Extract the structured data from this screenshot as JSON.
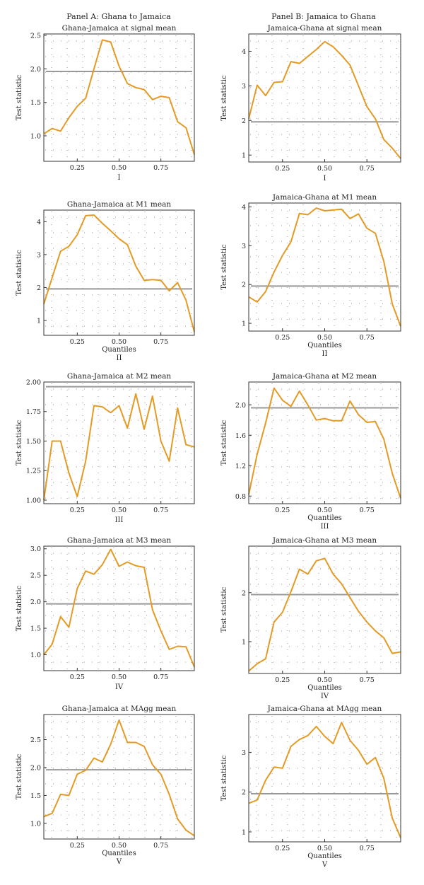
{
  "headings": {
    "left": "Panel A: Ghana to Jamaica",
    "right": "Panel B: Jamaica to Ghana"
  },
  "colors": {
    "line": "#E39B25",
    "critical": "#999999",
    "frame": "#333333",
    "grid_dots": "#9a9a9a"
  },
  "charts": [
    {
      "title": "Ghana-Jamaica at signal mean",
      "ylabel": "Test statistic",
      "xlabel": "",
      "roman": "I",
      "chart_data": {
        "type": "line",
        "xlim": [
          0.05,
          0.95
        ],
        "ylim": [
          0.62,
          2.52
        ],
        "yticks": [
          1.0,
          1.5,
          2.0,
          2.5
        ],
        "ytick_labels": [
          "1.0",
          "1.5",
          "2.0",
          "2.5"
        ],
        "xticks": [
          0.25,
          0.5,
          0.75
        ],
        "xtick_labels": [
          "0.25",
          "0.50",
          "0.75"
        ],
        "critical_value": 1.96,
        "x": [
          0.05,
          0.1,
          0.15,
          0.2,
          0.25,
          0.3,
          0.35,
          0.4,
          0.45,
          0.5,
          0.55,
          0.6,
          0.65,
          0.7,
          0.75,
          0.8,
          0.85,
          0.9,
          0.95
        ],
        "y": [
          1.03,
          1.11,
          1.07,
          1.27,
          1.44,
          1.56,
          2.0,
          2.43,
          2.4,
          2.04,
          1.78,
          1.72,
          1.69,
          1.54,
          1.59,
          1.57,
          1.21,
          1.12,
          0.72
        ]
      }
    },
    {
      "title": "Jamaica-Ghana at signal mean",
      "ylabel": "Test statistic",
      "xlabel": "",
      "roman": "I",
      "chart_data": {
        "type": "line",
        "xlim": [
          0.05,
          0.95
        ],
        "ylim": [
          0.8,
          4.5
        ],
        "yticks": [
          1,
          2,
          3,
          4
        ],
        "ytick_labels": [
          "1",
          "2",
          "3",
          "4"
        ],
        "xticks": [
          0.25,
          0.5,
          0.75
        ],
        "xtick_labels": [
          "0.25",
          "0.50",
          "0.75"
        ],
        "critical_value": 1.96,
        "x": [
          0.05,
          0.1,
          0.15,
          0.2,
          0.25,
          0.3,
          0.35,
          0.4,
          0.45,
          0.5,
          0.55,
          0.6,
          0.65,
          0.7,
          0.75,
          0.8,
          0.85,
          0.9,
          0.95
        ],
        "y": [
          2.05,
          3.02,
          2.72,
          3.1,
          3.12,
          3.7,
          3.65,
          3.85,
          4.05,
          4.28,
          4.13,
          3.88,
          3.6,
          3.0,
          2.4,
          2.05,
          1.45,
          1.2,
          0.9
        ]
      }
    },
    {
      "title": "Ghana-Jamaica at M1 mean",
      "ylabel": "Test statistic",
      "xlabel": "Quantiles",
      "roman": "II",
      "chart_data": {
        "type": "line",
        "xlim": [
          0.05,
          0.95
        ],
        "ylim": [
          0.55,
          4.35
        ],
        "yticks": [
          1,
          2,
          3,
          4
        ],
        "ytick_labels": [
          "1",
          "2",
          "3",
          "4"
        ],
        "xticks": [
          0.25,
          0.5,
          0.75
        ],
        "xtick_labels": [
          "0.25",
          "0.50",
          "0.75"
        ],
        "critical_value": 1.96,
        "x": [
          0.05,
          0.1,
          0.15,
          0.2,
          0.25,
          0.3,
          0.35,
          0.4,
          0.45,
          0.5,
          0.55,
          0.6,
          0.65,
          0.7,
          0.75,
          0.8,
          0.85,
          0.9,
          0.95
        ],
        "y": [
          1.5,
          2.3,
          3.1,
          3.25,
          3.6,
          4.18,
          4.2,
          3.95,
          3.72,
          3.48,
          3.3,
          2.65,
          2.22,
          2.24,
          2.22,
          1.9,
          2.15,
          1.62,
          0.65
        ]
      }
    },
    {
      "title": "Jamaica-Ghana at M1 mean",
      "ylabel": "Test statistic",
      "xlabel": "Quantiles",
      "roman": "II",
      "chart_data": {
        "type": "line",
        "xlim": [
          0.05,
          0.95
        ],
        "ylim": [
          0.8,
          4.1
        ],
        "yticks": [
          1,
          2,
          3,
          4
        ],
        "ytick_labels": [
          "1",
          "2",
          "3",
          "4"
        ],
        "xticks": [
          0.25,
          0.5,
          0.75
        ],
        "xtick_labels": [
          "0.25",
          "0.50",
          "0.75"
        ],
        "critical_value": 1.96,
        "x": [
          0.05,
          0.1,
          0.15,
          0.2,
          0.25,
          0.3,
          0.35,
          0.4,
          0.45,
          0.5,
          0.55,
          0.6,
          0.65,
          0.7,
          0.75,
          0.8,
          0.85,
          0.9,
          0.95
        ],
        "y": [
          1.68,
          1.55,
          1.82,
          2.32,
          2.75,
          3.1,
          3.83,
          3.8,
          3.97,
          3.9,
          3.92,
          3.94,
          3.7,
          3.82,
          3.45,
          3.32,
          2.6,
          1.5,
          0.92
        ]
      }
    },
    {
      "title": "Ghana-Jamaica at M2 mean",
      "ylabel": "Test statistic",
      "xlabel": "",
      "roman": "III",
      "chart_data": {
        "type": "line",
        "xlim": [
          0.05,
          0.95
        ],
        "ylim": [
          0.97,
          2.0
        ],
        "yticks": [
          1.0,
          1.25,
          1.5,
          1.75,
          2.0
        ],
        "ytick_labels": [
          "1.00",
          "1.25",
          "1.50",
          "1.75",
          "2.00"
        ],
        "xticks": [
          0.25,
          0.5,
          0.75
        ],
        "xtick_labels": [
          "0.25",
          "0.50",
          "0.75"
        ],
        "critical_value": 1.96,
        "x": [
          0.05,
          0.1,
          0.15,
          0.2,
          0.25,
          0.3,
          0.35,
          0.4,
          0.45,
          0.5,
          0.55,
          0.6,
          0.65,
          0.7,
          0.75,
          0.8,
          0.85,
          0.9,
          0.95
        ],
        "y": [
          1.0,
          1.5,
          1.5,
          1.23,
          1.03,
          1.33,
          1.8,
          1.79,
          1.74,
          1.8,
          1.61,
          1.9,
          1.6,
          1.88,
          1.5,
          1.33,
          1.78,
          1.47,
          1.45
        ]
      }
    },
    {
      "title": "Jamaica-Ghana at M2 mean",
      "ylabel": "Test statistic",
      "xlabel": "Quantiles",
      "roman": "III",
      "chart_data": {
        "type": "line",
        "xlim": [
          0.05,
          0.95
        ],
        "ylim": [
          0.7,
          2.3
        ],
        "yticks": [
          0.8,
          1.2,
          1.6,
          2.0
        ],
        "ytick_labels": [
          "0.8",
          "1.2",
          "1.6",
          "2.0"
        ],
        "xticks": [
          0.25,
          0.5,
          0.75
        ],
        "xtick_labels": [
          "0.25",
          "0.50",
          "0.75"
        ],
        "critical_value": 1.96,
        "x": [
          0.05,
          0.1,
          0.15,
          0.2,
          0.25,
          0.3,
          0.35,
          0.4,
          0.45,
          0.5,
          0.55,
          0.6,
          0.65,
          0.7,
          0.75,
          0.8,
          0.85,
          0.9,
          0.95
        ],
        "y": [
          0.82,
          1.35,
          1.76,
          2.22,
          2.06,
          1.98,
          2.18,
          2.0,
          1.8,
          1.82,
          1.79,
          1.79,
          2.05,
          1.87,
          1.77,
          1.78,
          1.55,
          1.1,
          0.77
        ]
      }
    },
    {
      "title": "Ghana-Jamaica at M3 mean",
      "ylabel": "Test statistic",
      "xlabel": "",
      "roman": "IV",
      "chart_data": {
        "type": "line",
        "xlim": [
          0.05,
          0.95
        ],
        "ylim": [
          0.7,
          3.05
        ],
        "yticks": [
          1.0,
          1.5,
          2.0,
          2.5,
          3.0
        ],
        "ytick_labels": [
          "1.0",
          "1.5",
          "2.0",
          "2.5",
          "3.0"
        ],
        "xticks": [
          0.25,
          0.5,
          0.75
        ],
        "xtick_labels": [
          "0.25",
          "0.50",
          "0.75"
        ],
        "critical_value": 1.96,
        "x": [
          0.05,
          0.1,
          0.15,
          0.2,
          0.25,
          0.3,
          0.35,
          0.4,
          0.45,
          0.5,
          0.55,
          0.6,
          0.65,
          0.7,
          0.75,
          0.8,
          0.85,
          0.9,
          0.95
        ],
        "y": [
          1.0,
          1.2,
          1.72,
          1.52,
          2.25,
          2.58,
          2.52,
          2.7,
          2.99,
          2.67,
          2.75,
          2.68,
          2.65,
          1.85,
          1.45,
          1.1,
          1.16,
          1.15,
          0.77
        ]
      }
    },
    {
      "title": "Jamaica-Ghana at M3 mean",
      "ylabel": "Test statistic",
      "xlabel": "Quantiles",
      "roman": "IV",
      "chart_data": {
        "type": "line",
        "xlim": [
          0.05,
          0.95
        ],
        "ylim": [
          0.35,
          2.95
        ],
        "yticks": [
          1,
          2
        ],
        "ytick_labels": [
          "1",
          "2"
        ],
        "xticks": [
          0.25,
          0.5,
          0.75
        ],
        "xtick_labels": [
          "0.25",
          "0.50",
          "0.75"
        ],
        "critical_value": 1.96,
        "x": [
          0.05,
          0.1,
          0.15,
          0.2,
          0.25,
          0.3,
          0.35,
          0.4,
          0.45,
          0.5,
          0.55,
          0.6,
          0.65,
          0.7,
          0.75,
          0.8,
          0.85,
          0.9,
          0.95
        ],
        "y": [
          0.4,
          0.55,
          0.65,
          1.4,
          1.6,
          2.02,
          2.48,
          2.38,
          2.65,
          2.7,
          2.38,
          2.18,
          1.9,
          1.62,
          1.4,
          1.22,
          1.08,
          0.76,
          0.79
        ]
      }
    },
    {
      "title": "Ghana-Jamaica at MAgg mean",
      "ylabel": "Test statistic",
      "xlabel": "Quantiles",
      "roman": "V",
      "chart_data": {
        "type": "line",
        "xlim": [
          0.05,
          0.95
        ],
        "ylim": [
          0.72,
          2.95
        ],
        "yticks": [
          1.0,
          1.5,
          2.0,
          2.5
        ],
        "ytick_labels": [
          "1.0",
          "1.5",
          "2.0",
          "2.5"
        ],
        "xticks": [
          0.25,
          0.5,
          0.75
        ],
        "xtick_labels": [
          "0.25",
          "0.50",
          "0.75"
        ],
        "critical_value": 1.96,
        "x": [
          0.05,
          0.1,
          0.15,
          0.2,
          0.25,
          0.3,
          0.35,
          0.4,
          0.45,
          0.5,
          0.55,
          0.6,
          0.65,
          0.7,
          0.75,
          0.8,
          0.85,
          0.9,
          0.95
        ],
        "y": [
          1.12,
          1.18,
          1.52,
          1.5,
          1.88,
          1.95,
          2.17,
          2.1,
          2.42,
          2.85,
          2.45,
          2.45,
          2.38,
          2.05,
          1.88,
          1.52,
          1.08,
          0.88,
          0.78
        ]
      }
    },
    {
      "title": "Jamaica-Ghana at MAgg mean",
      "ylabel": "Test statistic",
      "xlabel": "Quantiles",
      "roman": "V",
      "chart_data": {
        "type": "line",
        "xlim": [
          0.05,
          0.95
        ],
        "ylim": [
          0.75,
          3.95
        ],
        "yticks": [
          1,
          2,
          3
        ],
        "ytick_labels": [
          "1",
          "2",
          "3"
        ],
        "xticks": [
          0.25,
          0.5,
          0.75
        ],
        "xtick_labels": [
          "0.25",
          "0.50",
          "0.75"
        ],
        "critical_value": 1.96,
        "x": [
          0.05,
          0.1,
          0.15,
          0.2,
          0.25,
          0.3,
          0.35,
          0.4,
          0.45,
          0.5,
          0.55,
          0.6,
          0.65,
          0.7,
          0.75,
          0.8,
          0.85,
          0.9,
          0.95
        ],
        "y": [
          1.72,
          1.8,
          2.3,
          2.63,
          2.6,
          3.15,
          3.32,
          3.42,
          3.65,
          3.4,
          3.22,
          3.75,
          3.3,
          3.05,
          2.7,
          2.87,
          2.35,
          1.35,
          0.85
        ]
      }
    }
  ]
}
